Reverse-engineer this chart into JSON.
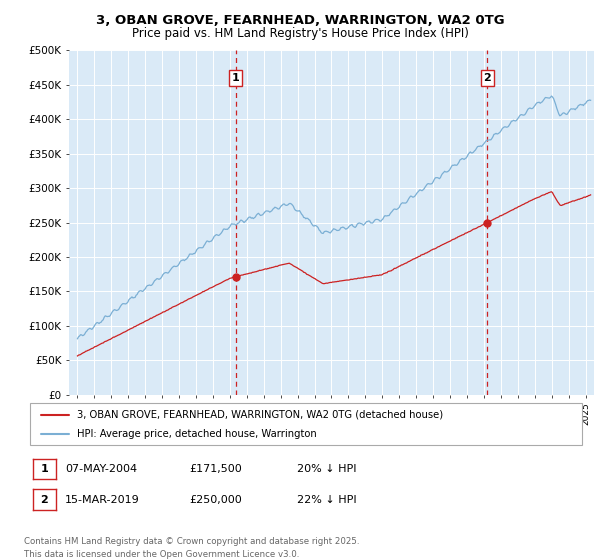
{
  "title_line1": "3, OBAN GROVE, FEARNHEAD, WARRINGTON, WA2 0TG",
  "title_line2": "Price paid vs. HM Land Registry's House Price Index (HPI)",
  "ylabel_ticks": [
    "£0",
    "£50K",
    "£100K",
    "£150K",
    "£200K",
    "£250K",
    "£300K",
    "£350K",
    "£400K",
    "£450K",
    "£500K"
  ],
  "ytick_values": [
    0,
    50000,
    100000,
    150000,
    200000,
    250000,
    300000,
    350000,
    400000,
    450000,
    500000
  ],
  "xmin": 1994.5,
  "xmax": 2025.5,
  "ymin": 0,
  "ymax": 500000,
  "bg_color": "#daeaf7",
  "red_line_color": "#cc2222",
  "blue_line_color": "#7bafd4",
  "vline_color": "#cc2222",
  "sale1_date": "07-MAY-2004",
  "sale1_price": 171500,
  "sale1_pct": "20% ↓ HPI",
  "sale2_date": "15-MAR-2019",
  "sale2_price": 250000,
  "sale2_pct": "22% ↓ HPI",
  "legend_label_red": "3, OBAN GROVE, FEARNHEAD, WARRINGTON, WA2 0TG (detached house)",
  "legend_label_blue": "HPI: Average price, detached house, Warrington",
  "footer": "Contains HM Land Registry data © Crown copyright and database right 2025.\nThis data is licensed under the Open Government Licence v3.0.",
  "sale1_x": 2004.35,
  "sale2_x": 2019.2
}
